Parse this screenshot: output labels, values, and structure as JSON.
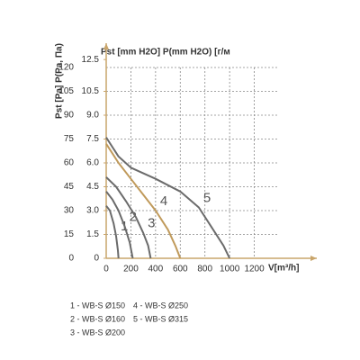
{
  "chart_data": {
    "type": "line",
    "ylabel": "Pst [Pa] P(Pa, Па)",
    "y2label": "Pst [mm H2O] P(mm H2O) [г/м",
    "xlabel": "V[m³/h]",
    "xlim": [
      0,
      1400
    ],
    "xticks": [
      0,
      200,
      400,
      600,
      800,
      1000,
      1200
    ],
    "ylim": [
      0,
      120
    ],
    "yticks": [
      0,
      15,
      30,
      45,
      60,
      75,
      90,
      105,
      120
    ],
    "y2lim": [
      0,
      12
    ],
    "y2ticks": [
      0,
      1.5,
      {
        "value": 3,
        "label": "3.0"
      },
      4.5,
      {
        "value": 6,
        "label": "6.0"
      },
      7.5,
      {
        "value": 9,
        "label": "9.0"
      },
      10.5,
      12.5
    ],
    "grid": true,
    "series": [
      {
        "name": "1 - WB-S Ø150",
        "label": "1",
        "color": "#6b6b6b",
        "x": [
          0,
          30,
          60,
          80,
          95,
          100
        ],
        "values": [
          33,
          30,
          22,
          14,
          5,
          0
        ]
      },
      {
        "name": "2 - WB-S Ø160",
        "label": "2",
        "color": "#6b6b6b",
        "x": [
          0,
          50,
          100,
          150,
          190,
          215
        ],
        "values": [
          42,
          37,
          30,
          20,
          10,
          0
        ]
      },
      {
        "name": "3 - WB-S Ø200",
        "label": "3",
        "color": "#6b6b6b",
        "x": [
          0,
          80,
          160,
          240,
          300,
          340,
          360
        ],
        "values": [
          51,
          45,
          36,
          26,
          16,
          8,
          0
        ]
      },
      {
        "name": "4 - WB-S Ø250",
        "label": "4",
        "color": "#c09a5b",
        "x": [
          0,
          100,
          200,
          300,
          400,
          500,
          560,
          600
        ],
        "values": [
          72,
          60,
          50,
          40,
          30,
          18,
          8,
          0
        ]
      },
      {
        "name": "5 - WB-S Ø315",
        "label": "5",
        "color": "#6b6b6b",
        "x": [
          0,
          100,
          200,
          400,
          600,
          750,
          850,
          950,
          1000
        ],
        "values": [
          76,
          64,
          57,
          50,
          42,
          32,
          20,
          8,
          0
        ]
      }
    ]
  }
}
